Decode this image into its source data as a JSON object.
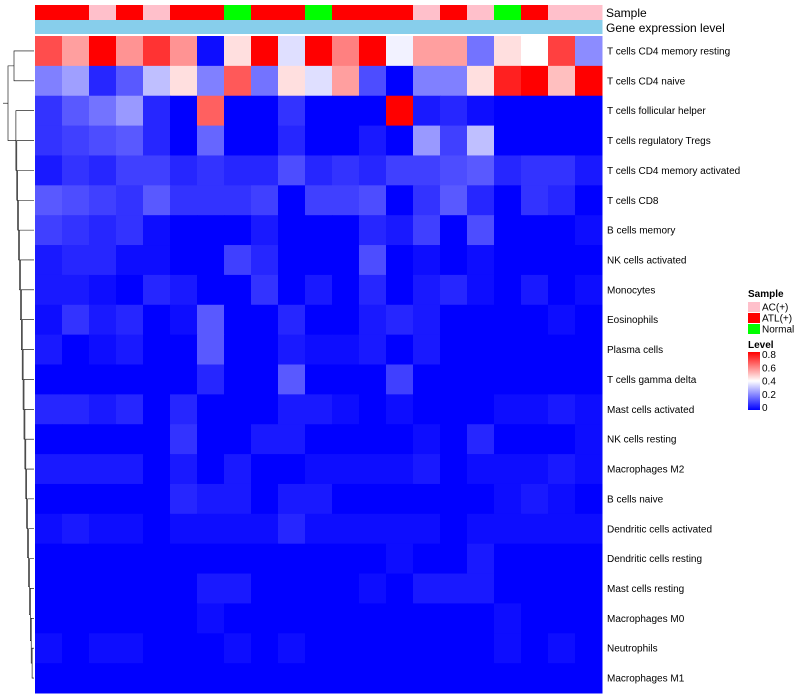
{
  "chart_data": {
    "type": "heatmap",
    "title": "",
    "annotation_tracks": [
      {
        "name": "Sample",
        "values": [
          "ATL(+)",
          "ATL(+)",
          "AC(+)",
          "ATL(+)",
          "AC(+)",
          "ATL(+)",
          "ATL(+)",
          "Normal",
          "ATL(+)",
          "ATL(+)",
          "Normal",
          "ATL(+)",
          "ATL(+)",
          "ATL(+)",
          "AC(+)",
          "ATL(+)",
          "AC(+)",
          "Normal",
          "ATL(+)",
          "AC(+)",
          "AC(+)"
        ]
      },
      {
        "name": "Gene expression level",
        "values": [
          0.1,
          0.1,
          0.1,
          0.1,
          0.1,
          0.1,
          0.1,
          0.1,
          0.1,
          0.1,
          0.1,
          0.1,
          0.1,
          0.1,
          0.1,
          0.1,
          0.1,
          0.1,
          0.1,
          0.1,
          0.1
        ]
      }
    ],
    "rows": [
      "T cells CD4 memory resting",
      "T cells CD4 naive",
      "T cells follicular helper",
      "T cells regulatory  Tregs",
      "T cells CD4 memory activated",
      "T cells CD8",
      "B cells memory",
      "NK cells activated",
      "Monocytes",
      "Eosinophils",
      "Plasma cells",
      "T cells gamma delta",
      "Mast cells activated",
      "NK cells resting",
      "Macrophages M2",
      "B cells naive",
      "Dendritic cells activated",
      "Dendritic cells resting",
      "Mast cells resting",
      "Macrophages M0",
      "Neutrophils",
      "Macrophages M1"
    ],
    "n_columns": 21,
    "values": [
      [
        0.68,
        0.55,
        0.8,
        0.57,
        0.72,
        0.57,
        0.02,
        0.45,
        0.8,
        0.35,
        0.8,
        0.6,
        0.8,
        0.38,
        0.55,
        0.55,
        0.18,
        0.45,
        0.4,
        0.7,
        0.22
      ],
      [
        0.2,
        0.25,
        0.06,
        0.14,
        0.3,
        0.45,
        0.2,
        0.66,
        0.18,
        0.45,
        0.35,
        0.55,
        0.12,
        0.0,
        0.2,
        0.2,
        0.45,
        0.75,
        0.8,
        0.5,
        0.8
      ],
      [
        0.08,
        0.14,
        0.18,
        0.24,
        0.06,
        0.0,
        0.65,
        0.0,
        0.0,
        0.08,
        0.0,
        0.0,
        0.0,
        0.8,
        0.04,
        0.06,
        0.02,
        0.0,
        0.0,
        0.0,
        0.0
      ],
      [
        0.08,
        0.1,
        0.12,
        0.14,
        0.06,
        0.0,
        0.16,
        0.0,
        0.0,
        0.06,
        0.0,
        0.0,
        0.04,
        0.0,
        0.24,
        0.1,
        0.3,
        0.0,
        0.0,
        0.0,
        0.0
      ],
      [
        0.04,
        0.08,
        0.06,
        0.1,
        0.1,
        0.06,
        0.08,
        0.06,
        0.06,
        0.12,
        0.06,
        0.08,
        0.06,
        0.1,
        0.1,
        0.12,
        0.14,
        0.06,
        0.08,
        0.08,
        0.04
      ],
      [
        0.14,
        0.12,
        0.1,
        0.08,
        0.14,
        0.08,
        0.08,
        0.08,
        0.1,
        0.0,
        0.1,
        0.1,
        0.12,
        0.0,
        0.08,
        0.14,
        0.06,
        0.0,
        0.08,
        0.06,
        0.0
      ],
      [
        0.1,
        0.08,
        0.06,
        0.08,
        0.02,
        0.0,
        0.0,
        0.0,
        0.04,
        0.0,
        0.0,
        0.0,
        0.06,
        0.04,
        0.1,
        0.0,
        0.12,
        0.0,
        0.0,
        0.0,
        0.02
      ],
      [
        0.04,
        0.06,
        0.06,
        0.02,
        0.02,
        0.0,
        0.0,
        0.1,
        0.06,
        0.0,
        0.0,
        0.0,
        0.12,
        0.0,
        0.02,
        0.0,
        0.02,
        0.0,
        0.0,
        0.0,
        0.0
      ],
      [
        0.04,
        0.04,
        0.02,
        0.0,
        0.06,
        0.04,
        0.0,
        0.0,
        0.08,
        0.0,
        0.04,
        0.0,
        0.06,
        0.0,
        0.04,
        0.06,
        0.02,
        0.0,
        0.04,
        0.0,
        0.02
      ],
      [
        0.02,
        0.08,
        0.04,
        0.06,
        0.0,
        0.02,
        0.14,
        0.0,
        0.0,
        0.06,
        0.0,
        0.0,
        0.04,
        0.06,
        0.04,
        0.0,
        0.0,
        0.0,
        0.0,
        0.02,
        0.0
      ],
      [
        0.04,
        0.0,
        0.02,
        0.04,
        0.0,
        0.0,
        0.14,
        0.0,
        0.0,
        0.04,
        0.02,
        0.02,
        0.04,
        0.0,
        0.04,
        0.0,
        0.0,
        0.0,
        0.0,
        0.0,
        0.0
      ],
      [
        0.0,
        0.0,
        0.0,
        0.0,
        0.0,
        0.0,
        0.06,
        0.0,
        0.0,
        0.14,
        0.0,
        0.0,
        0.0,
        0.1,
        0.0,
        0.0,
        0.0,
        0.0,
        0.0,
        0.0,
        0.0
      ],
      [
        0.06,
        0.06,
        0.04,
        0.06,
        0.0,
        0.06,
        0.0,
        0.0,
        0.0,
        0.04,
        0.04,
        0.02,
        0.0,
        0.02,
        0.0,
        0.0,
        0.0,
        0.02,
        0.02,
        0.04,
        0.02
      ],
      [
        0.0,
        0.0,
        0.0,
        0.0,
        0.0,
        0.08,
        0.0,
        0.0,
        0.04,
        0.04,
        0.0,
        0.0,
        0.0,
        0.0,
        0.02,
        0.0,
        0.06,
        0.0,
        0.0,
        0.0,
        0.02
      ],
      [
        0.04,
        0.04,
        0.04,
        0.04,
        0.0,
        0.04,
        0.0,
        0.04,
        0.0,
        0.0,
        0.02,
        0.02,
        0.02,
        0.02,
        0.04,
        0.0,
        0.02,
        0.02,
        0.02,
        0.04,
        0.02
      ],
      [
        0.0,
        0.0,
        0.0,
        0.0,
        0.0,
        0.06,
        0.04,
        0.04,
        0.0,
        0.04,
        0.04,
        0.0,
        0.0,
        0.0,
        0.0,
        0.0,
        0.0,
        0.02,
        0.04,
        0.02,
        0.0
      ],
      [
        0.02,
        0.04,
        0.02,
        0.02,
        0.0,
        0.02,
        0.02,
        0.02,
        0.02,
        0.06,
        0.02,
        0.02,
        0.02,
        0.02,
        0.02,
        0.0,
        0.02,
        0.02,
        0.02,
        0.02,
        0.02
      ],
      [
        0.0,
        0.0,
        0.0,
        0.0,
        0.0,
        0.0,
        0.0,
        0.0,
        0.0,
        0.0,
        0.0,
        0.0,
        0.0,
        0.02,
        0.0,
        0.0,
        0.04,
        0.0,
        0.0,
        0.0,
        0.0
      ],
      [
        0.0,
        0.0,
        0.0,
        0.0,
        0.0,
        0.0,
        0.04,
        0.04,
        0.0,
        0.0,
        0.0,
        0.0,
        0.02,
        0.0,
        0.04,
        0.04,
        0.04,
        0.0,
        0.0,
        0.0,
        0.0
      ],
      [
        0.0,
        0.0,
        0.0,
        0.0,
        0.0,
        0.0,
        0.02,
        0.0,
        0.0,
        0.0,
        0.0,
        0.0,
        0.0,
        0.0,
        0.0,
        0.0,
        0.0,
        0.02,
        0.0,
        0.0,
        0.0
      ],
      [
        0.02,
        0.0,
        0.02,
        0.02,
        0.0,
        0.0,
        0.0,
        0.02,
        0.0,
        0.02,
        0.0,
        0.0,
        0.0,
        0.0,
        0.0,
        0.0,
        0.0,
        0.02,
        0.0,
        0.02,
        0.0
      ],
      [
        0.0,
        0.0,
        0.0,
        0.0,
        0.0,
        0.0,
        0.0,
        0.0,
        0.0,
        0.0,
        0.0,
        0.0,
        0.0,
        0.0,
        0.0,
        0.0,
        0.0,
        0.0,
        0.0,
        0.0,
        0.0
      ]
    ],
    "legend": {
      "sample_title": "Sample",
      "sample_entries": [
        {
          "label": "AC(+)",
          "color": "#ffc0cb"
        },
        {
          "label": "ATL(+)",
          "color": "#ff0000"
        },
        {
          "label": "Normal",
          "color": "#00ff00"
        }
      ],
      "level_title": "Level",
      "level_ticks": [
        "0.8",
        "0.6",
        "0.4",
        "0.2",
        "0"
      ],
      "level_range": [
        0,
        0.8
      ]
    },
    "colors": {
      "low": "#0000ff",
      "mid": "#ffffff",
      "high": "#ff0000",
      "expression_track": "#87ceeb"
    },
    "row_dendrogram_merges": [
      [
        0,
        1
      ],
      [
        2,
        3
      ],
      [
        4,
        5
      ],
      [
        6,
        7
      ],
      [
        8,
        9
      ],
      [
        10,
        11
      ],
      [
        12,
        13
      ],
      [
        14,
        15
      ],
      [
        16,
        17
      ],
      [
        18,
        19
      ],
      [
        20,
        21
      ]
    ]
  }
}
